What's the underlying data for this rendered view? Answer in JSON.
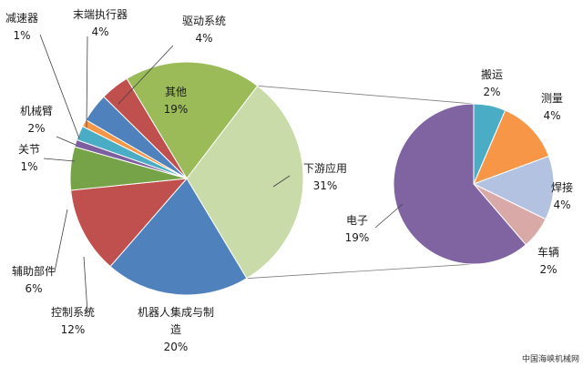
{
  "chart_data": {
    "type": "pie",
    "title": "",
    "main_pie": {
      "slices": [
        {
          "name": "其他",
          "value": 19,
          "label": "19%",
          "color": "#9BBB59"
        },
        {
          "name": "下游应用",
          "value": 31,
          "label": "31%",
          "color": "#C9DBA8"
        },
        {
          "name": "机器人集成与制造",
          "value": 20,
          "label": "20%",
          "color": "#4F81BD"
        },
        {
          "name": "控制系统",
          "value": 12,
          "label": "12%",
          "color": "#C0504D"
        },
        {
          "name": "辅助部件",
          "value": 6,
          "label": "6%",
          "color": "#77A348"
        },
        {
          "name": "关节",
          "value": 1,
          "label": "1%",
          "color": "#7D5FA0"
        },
        {
          "name": "机械臂",
          "value": 2,
          "label": "2%",
          "color": "#4BACC6"
        },
        {
          "name": "减速器",
          "value": 1,
          "label": "1%",
          "color": "#F79646"
        },
        {
          "name": "末端执行器",
          "value": 4,
          "label": "4%",
          "color": "#4F81BD"
        },
        {
          "name": "驱动系统",
          "value": 4,
          "label": "4%",
          "color": "#C0504D"
        }
      ]
    },
    "sub_pie": {
      "parent": "下游应用",
      "slices": [
        {
          "name": "搬运",
          "value": 2,
          "label": "2%",
          "color": "#4BACC6"
        },
        {
          "name": "测量",
          "value": 4,
          "label": "4%",
          "color": "#F79646"
        },
        {
          "name": "焊接",
          "value": 4,
          "label": "4%",
          "color": "#B2C2E0"
        },
        {
          "name": "车辆",
          "value": 2,
          "label": "2%",
          "color": "#D9A9A8"
        },
        {
          "name": "电子",
          "value": 19,
          "label": "19%",
          "color": "#8064A2"
        }
      ]
    }
  },
  "watermark": "中国海峡机械网"
}
